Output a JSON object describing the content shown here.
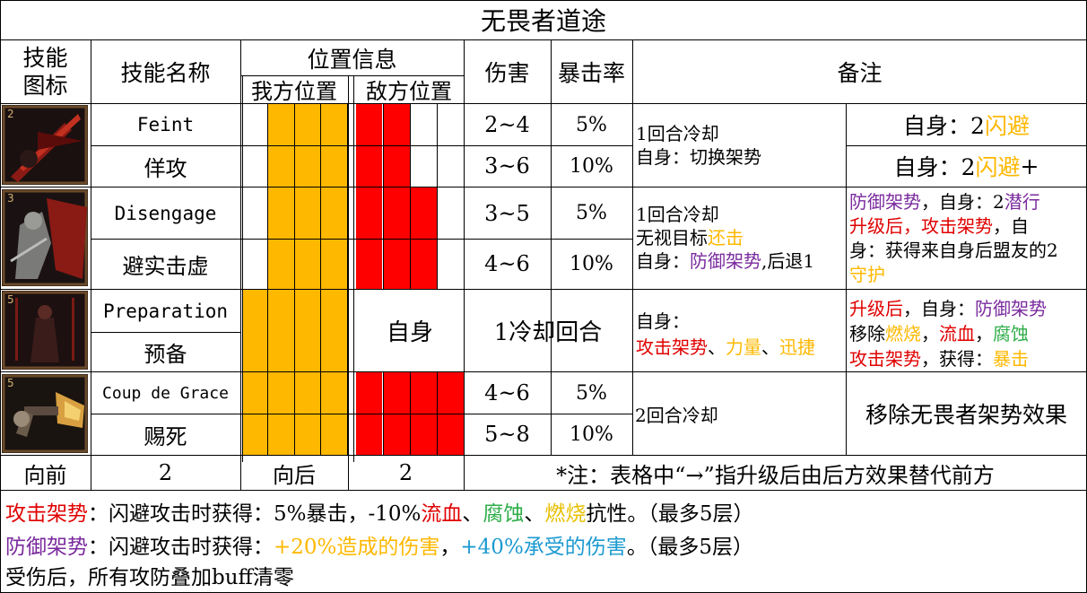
{
  "title": "无畏者道途",
  "headers": {
    "icon_line1": "技能",
    "icon_line2": "图标",
    "skill_name": "技能名称",
    "position_info": "位置信息",
    "own_position": "我方位置",
    "enemy_position": "敌方位置",
    "damage": "伤害",
    "crit": "暴击率",
    "notes": "备注"
  },
  "colors": {
    "own_position_fill": "#ffb800",
    "enemy_position_fill": "#ff0000",
    "text_red": "#e00000",
    "text_purple": "#7a2a9e",
    "text_orange": "#ffb800",
    "text_green": "#2fae4a",
    "text_teal": "#1c9ad0"
  },
  "skills": [
    {
      "icon": "sword-slash-icon",
      "icon_level": "2",
      "name_en": "Feint",
      "name_cn": "佯攻",
      "own_slots": [
        false,
        true,
        true,
        true
      ],
      "enemy_slots": [
        true,
        true,
        false,
        false
      ],
      "damage": [
        "2~4",
        "3~6"
      ],
      "crit": [
        "5%",
        "10%"
      ],
      "cooldown_note": {
        "line1": "1回合冷却",
        "line2": "自身：切换架势"
      },
      "right_notes": {
        "row1_prefix": "自身：2",
        "row1_keyword": "闪避",
        "row2_prefix": "自身：2",
        "row2_keyword": "闪避",
        "row2_suffix": "+"
      }
    },
    {
      "icon": "cloaked-figure-retreat-icon",
      "icon_level": "3",
      "name_en": "Disengage",
      "name_cn": "避实击虚",
      "own_slots": [
        false,
        true,
        true,
        true
      ],
      "enemy_slots": [
        true,
        true,
        true,
        false
      ],
      "damage": [
        "3~5",
        "4~6"
      ],
      "crit": [
        "5%",
        "10%"
      ],
      "cooldown_note": {
        "line1": "1回合冷却",
        "line2_prefix": "无视目标",
        "line2_keyword": "还击",
        "line3_prefix": "自身：",
        "line3_keyword": "防御架势",
        "line3_suffix": ",后退1"
      },
      "right_notes": {
        "l1_a": "防御架势",
        "l1_b": "，自身：2",
        "l1_c": "潜行",
        "l2_a": "升级后，",
        "l2_b": "攻击架势",
        "l2_c": "，自",
        "l3": "身：获得来自身后盟友的2",
        "l4": "守护"
      }
    },
    {
      "icon": "standing-figure-icon",
      "icon_level": "5",
      "name_en": "Preparation",
      "name_cn": "预备",
      "own_slots": [
        true,
        true,
        true,
        true
      ],
      "enemy_label": "自身",
      "merged_value": "1冷却回合",
      "cooldown_note": {
        "line1": "自身：",
        "line2_a": "攻击架势",
        "line2_sep1": "、",
        "line2_b": "力量",
        "line2_sep2": "、",
        "line2_c": "迅捷"
      },
      "right_notes": {
        "l1_a": "升级后",
        "l1_b": "，自身：",
        "l1_c": "防御架势",
        "l2_a": "移除",
        "l2_b": "燃烧",
        "l2_c": "，",
        "l2_d": "流血",
        "l2_e": "，",
        "l2_f": "腐蚀",
        "l3_a": "攻击架势",
        "l3_b": "，获得：",
        "l3_c": "暴击"
      }
    },
    {
      "icon": "pistol-shot-icon",
      "icon_level": "5",
      "name_en": "Coup de Grace",
      "name_cn": "赐死",
      "own_slots": [
        true,
        true,
        true,
        true
      ],
      "enemy_slots": [
        true,
        true,
        true,
        true
      ],
      "damage": [
        "4~6",
        "5~8"
      ],
      "crit": [
        "5%",
        "10%"
      ],
      "cooldown_note": {
        "line1": "2回合冷却"
      },
      "right_notes": {
        "text": "移除无畏者架势效果"
      }
    }
  ],
  "footer_row": {
    "forward_label": "向前",
    "forward_value": "2",
    "back_label": "向后",
    "back_value": "2",
    "note": "*注：表格中“→”指升级后由后方效果替代前方"
  },
  "bottom_lines": {
    "line1": {
      "a": "攻击架势",
      "b": "：闪避攻击时获得：5%暴击，-10%",
      "c": "流血",
      "d": "、",
      "e": "腐蚀",
      "f": "、",
      "g": "燃烧",
      "h": "抗性。（最多5层）"
    },
    "line2": {
      "a": "防御架势",
      "b": "：闪避攻击时获得：",
      "c": "+20%造成的伤害",
      "d": "，",
      "e": "+40%承受的伤害",
      "f": "。（最多5层）"
    },
    "line3": "受伤后，所有攻防叠加buff清零"
  }
}
